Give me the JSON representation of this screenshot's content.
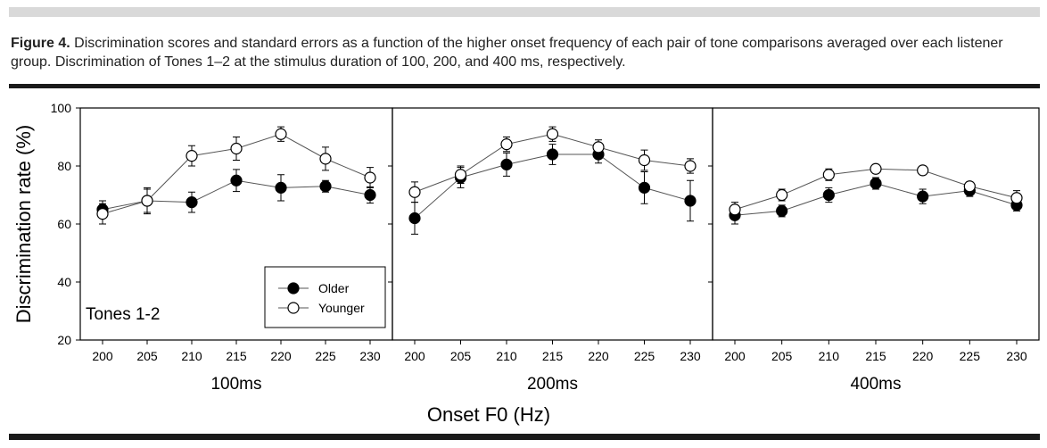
{
  "caption": {
    "label": "Figure 4.",
    "text": " Discrimination scores and standard errors as a function of the higher onset frequency of each pair of tone comparisons averaged over each listener group. Discrimination of Tones 1–2 at the stimulus duration of 100, 200, and 400 ms, respectively."
  },
  "chart_data": {
    "type": "line",
    "ylabel": "Discrimination rate (%)",
    "xlabel": "Onset F0 (Hz)",
    "ylim": [
      20,
      100
    ],
    "yticks": [
      20,
      40,
      60,
      80,
      100
    ],
    "x": [
      200,
      205,
      210,
      215,
      220,
      225,
      230
    ],
    "annotation": "Tones 1-2",
    "legend": {
      "placement": "lower-right of first panel",
      "entries": [
        "Older",
        "Younger"
      ]
    },
    "colors": {
      "Older": "#000000",
      "Younger": "#ffffff"
    },
    "panels": [
      {
        "title": "100ms",
        "series": [
          {
            "name": "Older",
            "values": [
              65,
              68,
              67.5,
              75,
              72.5,
              73,
              70
            ],
            "errors": [
              3,
              4,
              3.5,
              3.8,
              4.5,
              2,
              2.8
            ]
          },
          {
            "name": "Younger",
            "values": [
              63.5,
              68,
              83.5,
              86,
              91,
              82.5,
              76
            ],
            "errors": [
              3.5,
              4.5,
              3.5,
              4,
              2.5,
              4,
              3.5
            ]
          }
        ]
      },
      {
        "title": "200ms",
        "series": [
          {
            "name": "Older",
            "values": [
              62,
              76,
              80.5,
              84,
              84,
              72.5,
              68
            ],
            "errors": [
              5.5,
              3.5,
              4,
              3.5,
              3,
              5.5,
              7
            ]
          },
          {
            "name": "Younger",
            "values": [
              71,
              77,
              87.5,
              91,
              86.5,
              82,
              80
            ],
            "errors": [
              3.5,
              3,
              2.5,
              2.5,
              2.5,
              3.5,
              2.5
            ]
          }
        ]
      },
      {
        "title": "400ms",
        "series": [
          {
            "name": "Older",
            "values": [
              63,
              64.5,
              70,
              74,
              69.5,
              71.5,
              66.5
            ],
            "errors": [
              3,
              2,
              2.5,
              2,
              2.5,
              2,
              2
            ]
          },
          {
            "name": "Younger",
            "values": [
              65,
              70,
              77,
              79,
              78.5,
              73,
              69
            ],
            "errors": [
              2.5,
              2,
              2,
              1.5,
              1.5,
              1.5,
              2.5
            ]
          }
        ]
      }
    ]
  }
}
